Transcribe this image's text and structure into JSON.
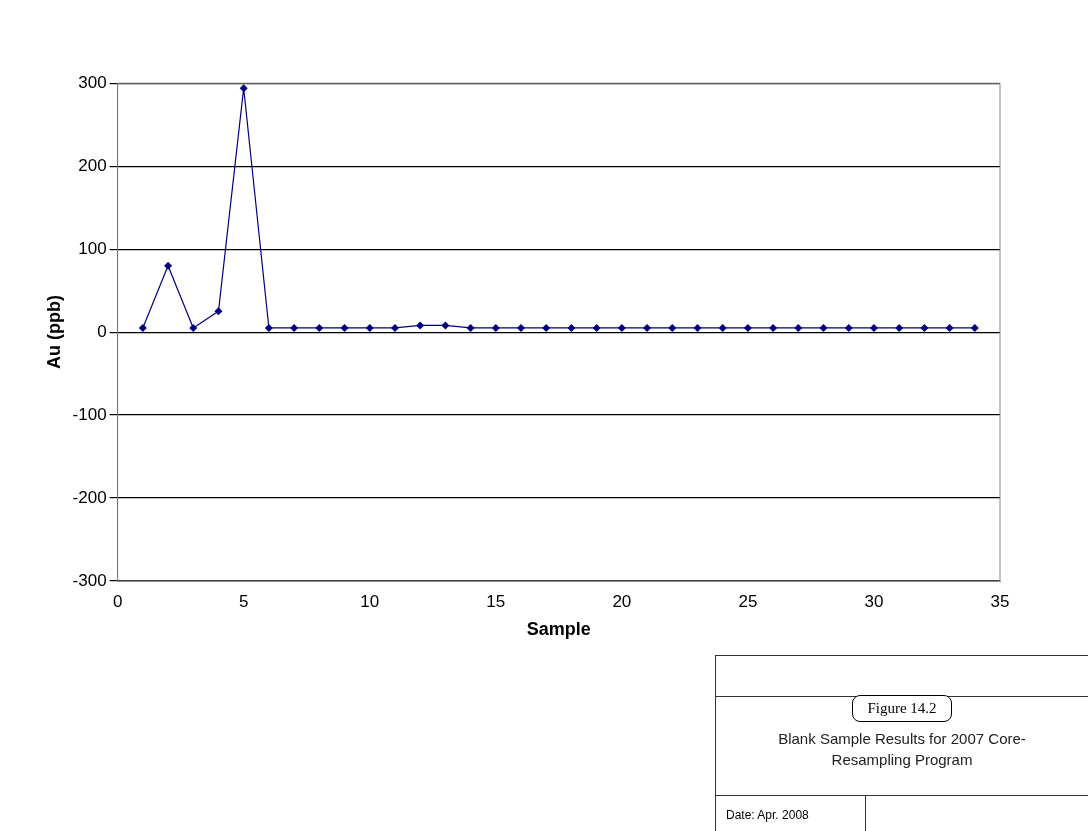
{
  "chart_data": {
    "type": "line",
    "xlabel": "Sample",
    "ylabel": "Au (ppb)",
    "x": [
      1,
      2,
      3,
      4,
      5,
      6,
      7,
      8,
      9,
      10,
      11,
      12,
      13,
      14,
      15,
      16,
      17,
      18,
      19,
      20,
      21,
      22,
      23,
      24,
      25,
      26,
      27,
      28,
      29,
      30,
      31,
      32,
      33,
      34
    ],
    "series": [
      {
        "color": "#000080",
        "values": [
          5,
          80,
          5,
          25,
          294,
          5,
          5,
          5,
          5,
          5,
          5,
          8,
          8,
          5,
          5,
          5,
          5,
          5,
          5,
          5,
          5,
          5,
          5,
          5,
          5,
          5,
          5,
          5,
          5,
          5,
          5,
          5,
          5,
          5
        ]
      }
    ],
    "xlim": [
      0,
      35
    ],
    "xticks": [
      0,
      5,
      10,
      15,
      20,
      25,
      30,
      35
    ],
    "ylim": [
      -300,
      300
    ],
    "yticks": [
      -300,
      -200,
      -100,
      0,
      100,
      200,
      300
    ],
    "grid": "y",
    "marker": "diamond",
    "line_style": "solid",
    "legend": false,
    "annotations": [
      "Figure 14.2",
      "Blank Sample Results for 2007 Core-Resampling Program",
      "Date: Apr. 2008"
    ]
  }
}
